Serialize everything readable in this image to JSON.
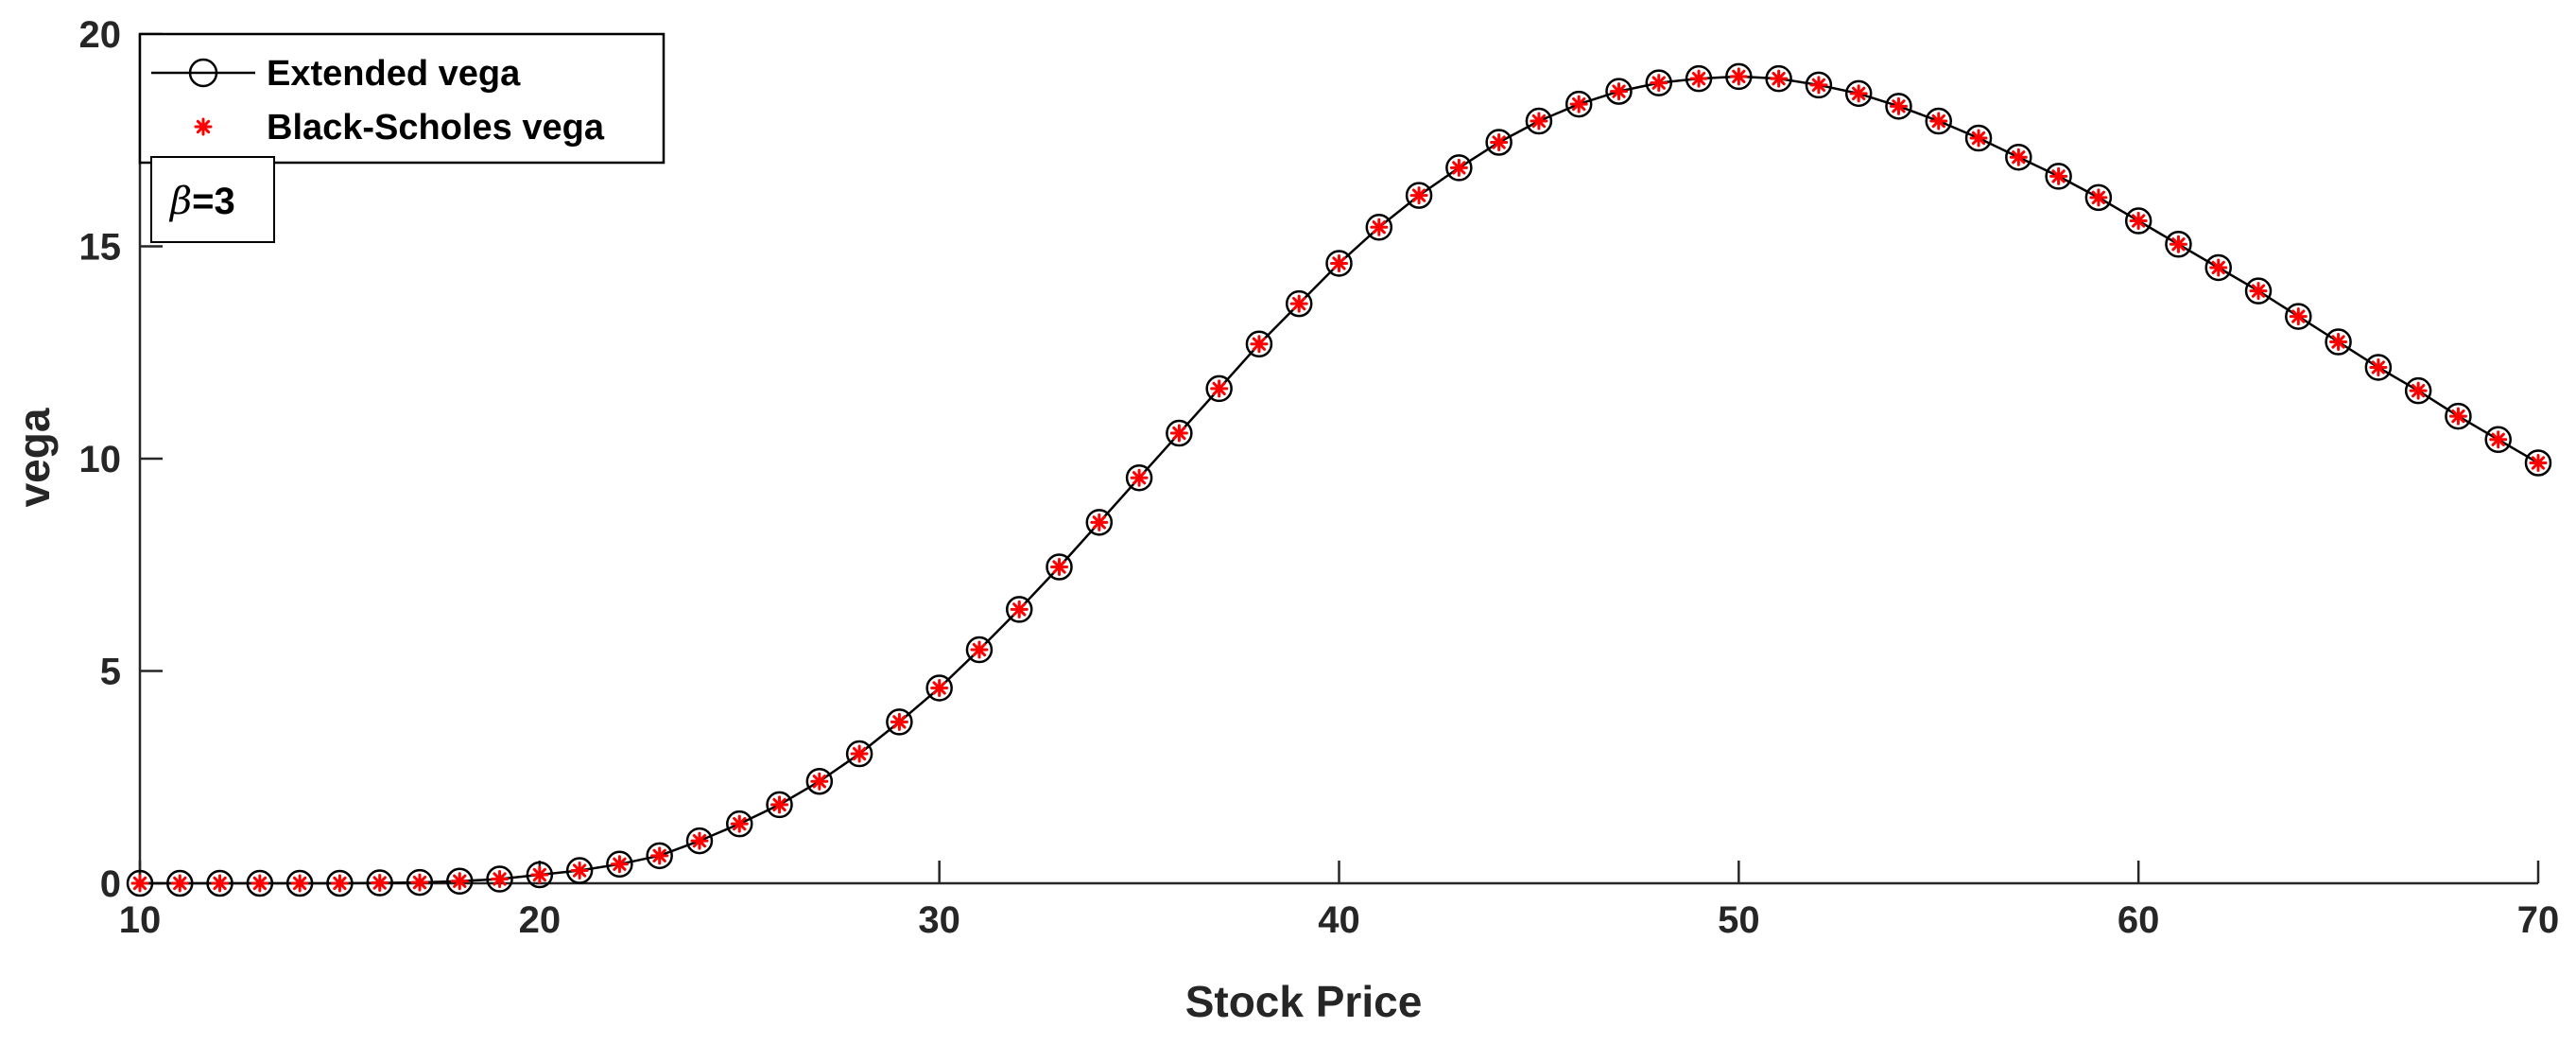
{
  "chart_data": {
    "type": "line",
    "title": "",
    "xlabel": "Stock Price",
    "ylabel": "vega",
    "xlim": [
      10,
      70
    ],
    "ylim": [
      0,
      20
    ],
    "xticks": [
      "10",
      "20",
      "30",
      "40",
      "50",
      "60",
      "70"
    ],
    "yticks": [
      "0",
      "5",
      "10",
      "15",
      "20"
    ],
    "grid": false,
    "legend_position": "top-left",
    "annotation": {
      "symbol": "β",
      "text": "=3"
    },
    "x": [
      10,
      11,
      12,
      13,
      14,
      15,
      16,
      17,
      18,
      19,
      20,
      21,
      22,
      23,
      24,
      25,
      26,
      27,
      28,
      29,
      30,
      31,
      32,
      33,
      34,
      35,
      36,
      37,
      38,
      39,
      40,
      41,
      42,
      43,
      44,
      45,
      46,
      47,
      48,
      49,
      50,
      51,
      52,
      53,
      54,
      55,
      56,
      57,
      58,
      59,
      60,
      61,
      62,
      63,
      64,
      65,
      66,
      67,
      68,
      69,
      70
    ],
    "series": [
      {
        "name": "Extended vega",
        "style": "line-circle",
        "color": "#000000",
        "values": [
          0,
          0,
          0,
          0,
          0,
          0,
          0.01,
          0.02,
          0.05,
          0.1,
          0.2,
          0.3,
          0.45,
          0.65,
          1.0,
          1.4,
          1.85,
          2.4,
          3.05,
          3.8,
          4.6,
          5.5,
          6.45,
          7.45,
          8.5,
          9.55,
          10.6,
          11.65,
          12.7,
          13.65,
          14.6,
          15.45,
          16.2,
          16.85,
          17.45,
          17.95,
          18.35,
          18.65,
          18.85,
          18.95,
          19.0,
          18.95,
          18.8,
          18.6,
          18.3,
          17.95,
          17.55,
          17.1,
          16.65,
          16.15,
          15.6,
          15.05,
          14.5,
          13.95,
          13.35,
          12.75,
          12.15,
          11.6,
          11.0,
          10.45,
          9.9
        ]
      },
      {
        "name": "Black-Scholes vega",
        "style": "asterisk",
        "color": "#ff0000",
        "values": [
          0,
          0,
          0,
          0,
          0,
          0,
          0.01,
          0.02,
          0.05,
          0.1,
          0.2,
          0.3,
          0.45,
          0.65,
          1.0,
          1.4,
          1.85,
          2.4,
          3.05,
          3.8,
          4.6,
          5.5,
          6.45,
          7.45,
          8.5,
          9.55,
          10.6,
          11.65,
          12.7,
          13.65,
          14.6,
          15.45,
          16.2,
          16.85,
          17.45,
          17.95,
          18.35,
          18.65,
          18.85,
          18.95,
          19.0,
          18.95,
          18.8,
          18.6,
          18.3,
          17.95,
          17.55,
          17.1,
          16.65,
          16.15,
          15.6,
          15.05,
          14.5,
          13.95,
          13.35,
          12.75,
          12.15,
          11.6,
          11.0,
          10.45,
          9.9
        ]
      }
    ]
  }
}
